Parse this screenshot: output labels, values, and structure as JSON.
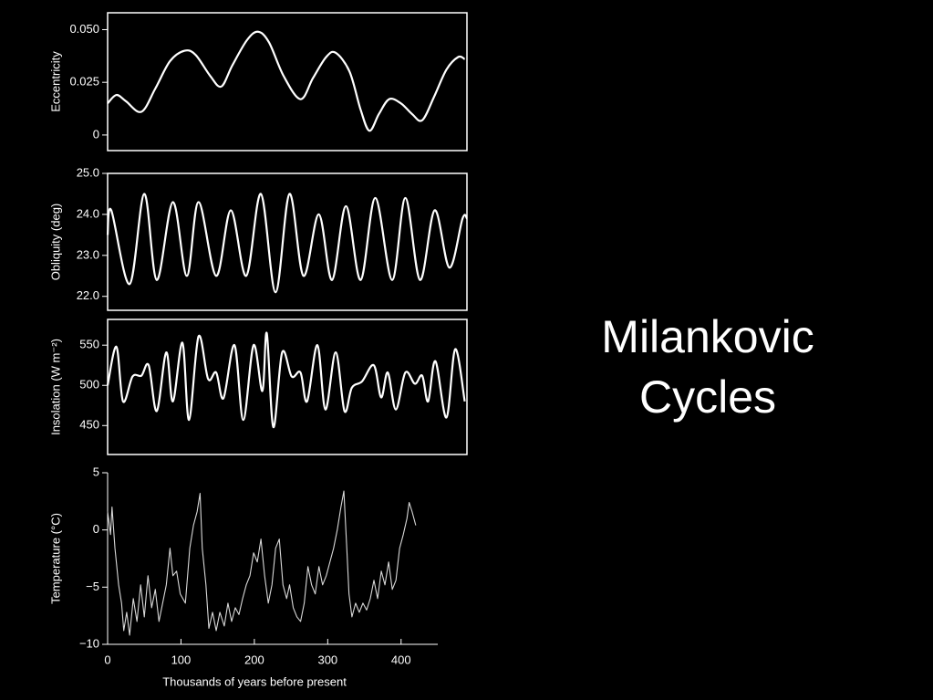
{
  "title": "Milankovic Cycles",
  "chart_data": [
    {
      "type": "line",
      "smooth": true,
      "frame": true,
      "ylabel": "Eccentricity",
      "color": "#ffffff",
      "xlim": [
        0,
        490
      ],
      "ylim": [
        -0.0074,
        0.058
      ],
      "yticks": [
        {
          "value": 0.05,
          "label": "0.050"
        },
        0.025,
        0
      ],
      "x": [
        0,
        12,
        25,
        46,
        65,
        85,
        105,
        120,
        140,
        155,
        170,
        190,
        205,
        220,
        240,
        263,
        280,
        298,
        311,
        330,
        345,
        357,
        370,
        384,
        400,
        415,
        429,
        445,
        462,
        478,
        487
      ],
      "values": [
        0.015,
        0.019,
        0.016,
        0.011,
        0.022,
        0.035,
        0.04,
        0.038,
        0.028,
        0.023,
        0.033,
        0.045,
        0.049,
        0.044,
        0.028,
        0.017,
        0.027,
        0.037,
        0.039,
        0.03,
        0.012,
        0.002,
        0.01,
        0.017,
        0.015,
        0.01,
        0.007,
        0.018,
        0.031,
        0.037,
        0.036
      ]
    },
    {
      "type": "line",
      "smooth": true,
      "frame": true,
      "ylabel": "Obliquity (deg)",
      "color": "#ffffff",
      "xlim": [
        0,
        490
      ],
      "ylim": [
        21.66,
        25.0
      ],
      "yticks": [
        {
          "value": 25,
          "label": "25.0"
        },
        {
          "value": 24,
          "label": "24.0"
        },
        {
          "value": 23,
          "label": "23.0"
        },
        {
          "value": 22,
          "label": "22.0"
        }
      ],
      "x": [
        0,
        5,
        30,
        50,
        67,
        89,
        108,
        124,
        148,
        168,
        189,
        209,
        229,
        248,
        267,
        288,
        306,
        325,
        345,
        365,
        388,
        406,
        426,
        446,
        466,
        484,
        490
      ],
      "values": [
        23.5,
        24.1,
        22.3,
        24.5,
        22.4,
        24.3,
        22.5,
        24.3,
        22.5,
        24.1,
        22.5,
        24.5,
        22.1,
        24.5,
        22.5,
        24.0,
        22.4,
        24.2,
        22.4,
        24.4,
        22.4,
        24.4,
        22.4,
        24.1,
        22.7,
        23.9,
        23.9
      ]
    },
    {
      "type": "line",
      "smooth": true,
      "frame": true,
      "ylabel": "Insolation (W m⁻²)",
      "color": "#ffffff",
      "xlim": [
        0,
        490
      ],
      "ylim": [
        414,
        582
      ],
      "yticks": [
        550,
        500,
        450
      ],
      "x": [
        0,
        12,
        21,
        34,
        46,
        56,
        67,
        80,
        89,
        102,
        111,
        124,
        137,
        148,
        158,
        173,
        185,
        199,
        211,
        217,
        226,
        238,
        251,
        263,
        272,
        286,
        297,
        311,
        323,
        333,
        347,
        363,
        373,
        382,
        393,
        406,
        419,
        429,
        437,
        447,
        462,
        474,
        487
      ],
      "values": [
        500,
        548,
        480,
        511,
        512,
        525,
        468,
        541,
        480,
        553,
        457,
        561,
        508,
        516,
        484,
        550,
        457,
        550,
        493,
        565,
        448,
        541,
        511,
        516,
        480,
        550,
        470,
        541,
        468,
        497,
        505,
        525,
        485,
        516,
        470,
        516,
        502,
        512,
        480,
        530,
        460,
        545,
        480
      ]
    },
    {
      "type": "line",
      "smooth": false,
      "frame": false,
      "ylabel": "Temperature (°C)",
      "xlabel": "Thousands of years before present",
      "color": "#d8d8d8",
      "xlim": [
        0,
        450
      ],
      "ylim": [
        -10,
        5
      ],
      "xticks": [
        0,
        100,
        200,
        300,
        400
      ],
      "yticks": [
        5,
        0,
        {
          "value": -5,
          "label": "−5"
        },
        {
          "value": -10,
          "label": "−10"
        }
      ],
      "x": [
        0,
        4,
        6,
        10,
        15,
        19,
        22,
        26,
        30,
        35,
        40,
        45,
        50,
        55,
        60,
        65,
        70,
        75,
        80,
        85,
        89,
        94,
        99,
        106,
        112,
        117,
        122,
        126,
        129,
        134,
        138,
        143,
        148,
        153,
        159,
        164,
        169,
        174,
        179,
        184,
        189,
        194,
        199,
        204,
        209,
        214,
        219,
        224,
        229,
        234,
        239,
        244,
        248,
        253,
        258,
        263,
        268,
        273,
        278,
        283,
        288,
        293,
        298,
        303,
        308,
        313,
        318,
        322,
        326,
        329,
        333,
        338,
        343,
        348,
        353,
        358,
        363,
        368,
        373,
        378,
        383,
        388,
        393,
        398,
        403,
        408,
        411,
        415,
        420
      ],
      "values": [
        1.6,
        -0.4,
        2.0,
        -1.6,
        -4.8,
        -6.4,
        -8.8,
        -7.2,
        -9.2,
        -6.0,
        -8.0,
        -4.8,
        -7.6,
        -4.0,
        -6.8,
        -5.2,
        -8.0,
        -6.4,
        -4.8,
        -1.6,
        -4.0,
        -3.6,
        -5.6,
        -6.4,
        -1.6,
        0.4,
        1.6,
        3.2,
        -1.6,
        -4.8,
        -8.6,
        -7.2,
        -8.8,
        -7.2,
        -8.4,
        -6.4,
        -8.0,
        -6.8,
        -7.4,
        -6.0,
        -4.8,
        -4.0,
        -2.0,
        -2.8,
        -0.8,
        -4.0,
        -6.4,
        -4.8,
        -1.6,
        -0.8,
        -4.8,
        -6.0,
        -4.8,
        -6.8,
        -7.6,
        -8.0,
        -6.4,
        -3.2,
        -4.8,
        -5.6,
        -3.2,
        -4.8,
        -4.0,
        -2.8,
        -1.6,
        0.0,
        2.0,
        3.4,
        -1.6,
        -5.6,
        -7.6,
        -6.4,
        -7.2,
        -6.4,
        -7.0,
        -6.0,
        -4.4,
        -6.0,
        -3.6,
        -4.8,
        -2.8,
        -5.2,
        -4.4,
        -1.6,
        -0.4,
        1.0,
        2.4,
        1.6,
        0.4
      ]
    }
  ]
}
